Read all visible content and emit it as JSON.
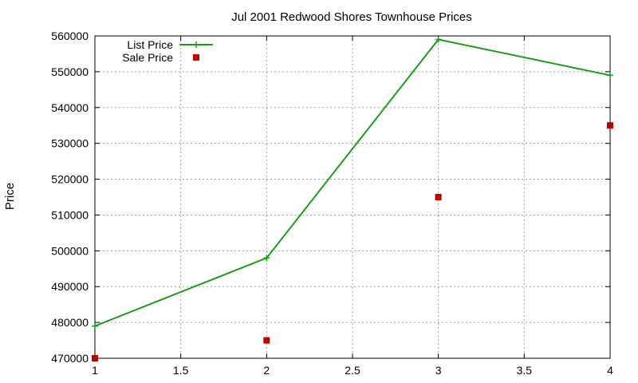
{
  "chart_data": {
    "type": "line",
    "title": "Jul 2001 Redwood Shores Townhouse Prices",
    "xlabel": "",
    "ylabel": "Price",
    "xlim": [
      1,
      4
    ],
    "ylim": [
      470000,
      560000
    ],
    "x_ticks": [
      1,
      1.5,
      2,
      2.5,
      3,
      3.5,
      4
    ],
    "x_tick_labels": [
      "1",
      "1.5",
      "2",
      "2.5",
      "3",
      "3.5",
      "4"
    ],
    "y_ticks": [
      470000,
      480000,
      490000,
      500000,
      510000,
      520000,
      530000,
      540000,
      550000,
      560000
    ],
    "y_tick_labels": [
      "470000",
      "480000",
      "490000",
      "500000",
      "510000",
      "520000",
      "530000",
      "540000",
      "550000",
      "560000"
    ],
    "grid": true,
    "legend_position": "top-left",
    "series": [
      {
        "name": "List Price",
        "style": "linespoints",
        "color": "#1a9e1a",
        "x": [
          1,
          2,
          3,
          4
        ],
        "y": [
          479000,
          498000,
          559000,
          549000
        ]
      },
      {
        "name": "Sale Price",
        "style": "points",
        "color": "#c00000",
        "x": [
          1,
          2,
          3,
          4
        ],
        "y": [
          470000,
          475000,
          515000,
          535000
        ]
      }
    ]
  }
}
